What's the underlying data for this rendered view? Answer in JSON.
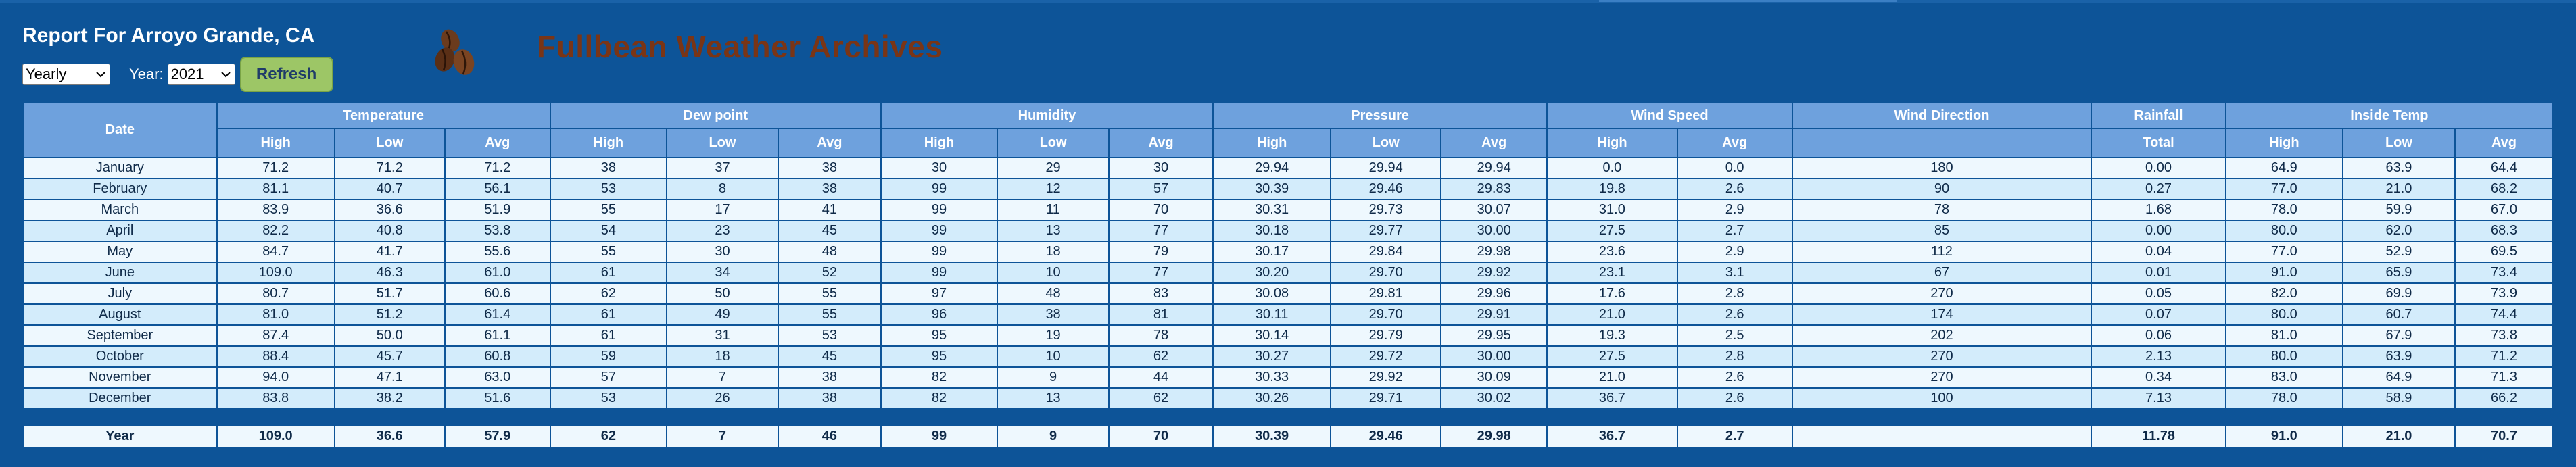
{
  "report": {
    "title": "Report For Arroyo Grande, CA",
    "period": "Yearly",
    "year_label": "Year:",
    "year": "2021",
    "refresh_label": "Refresh",
    "site_title": "Fullbean Weather Archives",
    "logo_icon": "coffee-beans-icon",
    "colors": {
      "background": "#0d5498",
      "header": "#6ea1dd",
      "row_light": "#eef8fe",
      "row_alt": "#d3ecfb",
      "refresh": "#9dc666",
      "site_title": "#7a3516"
    }
  },
  "table": {
    "groups": [
      "Date",
      "Temperature",
      "Dew point",
      "Humidity",
      "Pressure",
      "Wind Speed",
      "Wind Direction",
      "Rainfall",
      "Inside Temp"
    ],
    "subheaders": [
      "",
      "High",
      "Low",
      "Avg",
      "High",
      "Low",
      "Avg",
      "High",
      "Low",
      "Avg",
      "High",
      "Low",
      "Avg",
      "High",
      "Avg",
      "",
      "Total",
      "High",
      "Low",
      "Avg"
    ],
    "rows": [
      [
        "January",
        "71.2",
        "71.2",
        "71.2",
        "38",
        "37",
        "38",
        "30",
        "29",
        "30",
        "29.94",
        "29.94",
        "29.94",
        "0.0",
        "0.0",
        "180",
        "0.00",
        "64.9",
        "63.9",
        "64.4"
      ],
      [
        "February",
        "81.1",
        "40.7",
        "56.1",
        "53",
        "8",
        "38",
        "99",
        "12",
        "57",
        "30.39",
        "29.46",
        "29.83",
        "19.8",
        "2.6",
        "90",
        "0.27",
        "77.0",
        "21.0",
        "68.2"
      ],
      [
        "March",
        "83.9",
        "36.6",
        "51.9",
        "55",
        "17",
        "41",
        "99",
        "11",
        "70",
        "30.31",
        "29.73",
        "30.07",
        "31.0",
        "2.9",
        "78",
        "1.68",
        "78.0",
        "59.9",
        "67.0"
      ],
      [
        "April",
        "82.2",
        "40.8",
        "53.8",
        "54",
        "23",
        "45",
        "99",
        "13",
        "77",
        "30.18",
        "29.77",
        "30.00",
        "27.5",
        "2.7",
        "85",
        "0.00",
        "80.0",
        "62.0",
        "68.3"
      ],
      [
        "May",
        "84.7",
        "41.7",
        "55.6",
        "55",
        "30",
        "48",
        "99",
        "18",
        "79",
        "30.17",
        "29.84",
        "29.98",
        "23.6",
        "2.9",
        "112",
        "0.04",
        "77.0",
        "52.9",
        "69.5"
      ],
      [
        "June",
        "109.0",
        "46.3",
        "61.0",
        "61",
        "34",
        "52",
        "99",
        "10",
        "77",
        "30.20",
        "29.70",
        "29.92",
        "23.1",
        "3.1",
        "67",
        "0.01",
        "91.0",
        "65.9",
        "73.4"
      ],
      [
        "July",
        "80.7",
        "51.7",
        "60.6",
        "62",
        "50",
        "55",
        "97",
        "48",
        "83",
        "30.08",
        "29.81",
        "29.96",
        "17.6",
        "2.8",
        "270",
        "0.05",
        "82.0",
        "69.9",
        "73.9"
      ],
      [
        "August",
        "81.0",
        "51.2",
        "61.4",
        "61",
        "49",
        "55",
        "96",
        "38",
        "81",
        "30.11",
        "29.70",
        "29.91",
        "21.0",
        "2.6",
        "174",
        "0.07",
        "80.0",
        "60.7",
        "74.4"
      ],
      [
        "September",
        "87.4",
        "50.0",
        "61.1",
        "61",
        "31",
        "53",
        "95",
        "19",
        "78",
        "30.14",
        "29.79",
        "29.95",
        "19.3",
        "2.5",
        "202",
        "0.06",
        "81.0",
        "67.9",
        "73.8"
      ],
      [
        "October",
        "88.4",
        "45.7",
        "60.8",
        "59",
        "18",
        "45",
        "95",
        "10",
        "62",
        "30.27",
        "29.72",
        "30.00",
        "27.5",
        "2.8",
        "270",
        "2.13",
        "80.0",
        "63.9",
        "71.2"
      ],
      [
        "November",
        "94.0",
        "47.1",
        "63.0",
        "57",
        "7",
        "38",
        "82",
        "9",
        "44",
        "30.33",
        "29.92",
        "30.09",
        "21.0",
        "2.6",
        "270",
        "0.34",
        "83.0",
        "64.9",
        "71.3"
      ],
      [
        "December",
        "83.8",
        "38.2",
        "51.6",
        "53",
        "26",
        "38",
        "82",
        "13",
        "62",
        "30.26",
        "29.71",
        "30.02",
        "36.7",
        "2.6",
        "100",
        "7.13",
        "78.0",
        "58.9",
        "66.2"
      ]
    ],
    "total": [
      "Year",
      "109.0",
      "36.6",
      "57.9",
      "62",
      "7",
      "46",
      "99",
      "9",
      "70",
      "30.39",
      "29.46",
      "29.98",
      "36.7",
      "2.7",
      "",
      "11.78",
      "91.0",
      "21.0",
      "70.7"
    ]
  }
}
